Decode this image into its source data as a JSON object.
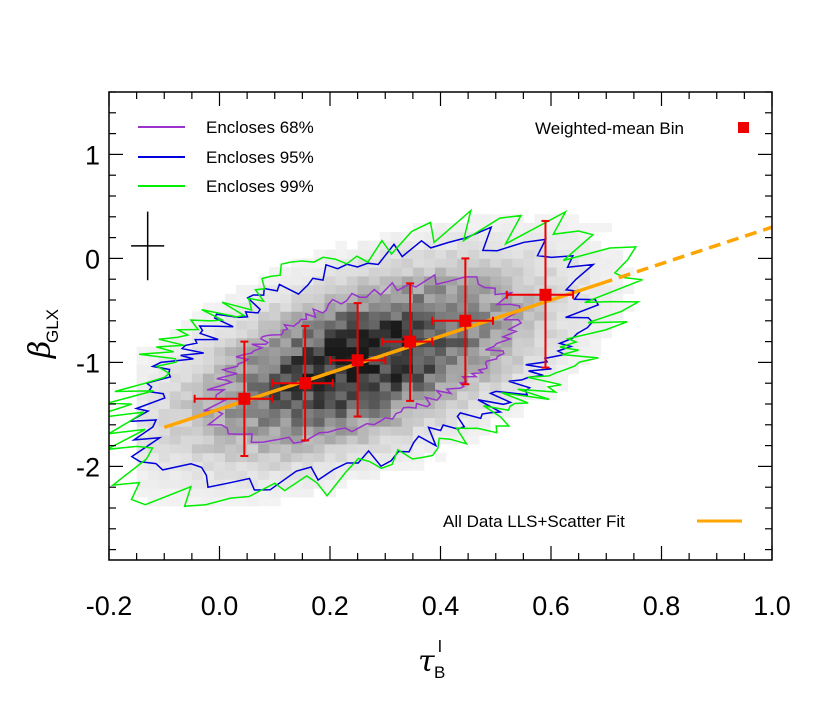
{
  "chart_data": {
    "type": "scatter",
    "xlim": [
      -0.2,
      1.0
    ],
    "ylim": [
      -2.9,
      1.6
    ],
    "x_ticks": [
      -0.2,
      0.0,
      0.2,
      0.4,
      0.6,
      0.8,
      1.0
    ],
    "x_tick_labels": [
      "-0.2",
      "0.0",
      "0.2",
      "0.4",
      "0.6",
      "0.8",
      "1.0"
    ],
    "y_ticks": [
      1,
      0,
      -1,
      -2
    ],
    "y_tick_labels": [
      "1",
      "0",
      "-1",
      "-2"
    ],
    "xlabel": {
      "main": "τ",
      "sup": "l",
      "sub": "B"
    },
    "ylabel": {
      "main": "β",
      "sub": "GLX"
    },
    "legend": {
      "contour_68": {
        "label": "Encloses 68%",
        "color": "#9933CC"
      },
      "contour_95": {
        "label": "Encloses 95%",
        "color": "#0000DD"
      },
      "contour_99": {
        "label": "Encloses 99%",
        "color": "#00EE00"
      },
      "bins": {
        "label": "Weighted-mean Bin",
        "color": "#EE0000"
      },
      "fit": {
        "label": "All Data LLS+Scatter Fit",
        "color": "#FFA500"
      }
    },
    "fit_line": {
      "slope": 1.75,
      "intercept": -1.45,
      "solid_x": [
        -0.1,
        0.69
      ],
      "dashed_x": [
        0.69,
        1.0
      ]
    },
    "bins": [
      {
        "x": 0.045,
        "y": -1.35,
        "xerr_lo": 0.09,
        "xerr_hi": 0.05,
        "y_lo": -1.9,
        "y_hi": -0.8
      },
      {
        "x": 0.155,
        "y": -1.2,
        "xerr_lo": 0.06,
        "xerr_hi": 0.05,
        "y_lo": -1.75,
        "y_hi": -0.65
      },
      {
        "x": 0.25,
        "y": -0.98,
        "xerr_lo": 0.05,
        "xerr_hi": 0.05,
        "y_lo": -1.52,
        "y_hi": -0.43
      },
      {
        "x": 0.345,
        "y": -0.8,
        "xerr_lo": 0.05,
        "xerr_hi": 0.04,
        "y_lo": -1.37,
        "y_hi": -0.24
      },
      {
        "x": 0.445,
        "y": -0.6,
        "xerr_lo": 0.06,
        "xerr_hi": 0.05,
        "y_lo": -1.21,
        "y_hi": 0.0
      },
      {
        "x": 0.59,
        "y": -0.35,
        "xerr_lo": 0.07,
        "xerr_hi": 0.05,
        "y_lo": -1.05,
        "y_hi": 0.36
      }
    ],
    "typical_error": {
      "x": -0.13,
      "y": 0.12,
      "dx": 0.03,
      "dy": 0.33
    },
    "density": {
      "center": [
        0.26,
        -0.98
      ],
      "slope": 1.6,
      "sigma_along": 0.27,
      "sigma_perp": 0.3
    }
  }
}
